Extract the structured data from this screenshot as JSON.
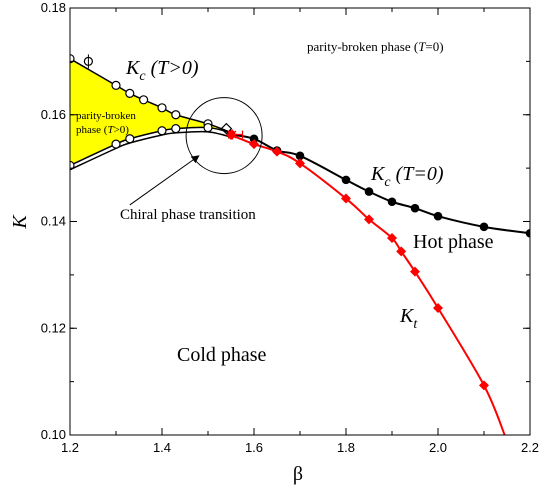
{
  "chart_data": {
    "type": "scatter",
    "xlabel": "β",
    "ylabel": "K",
    "xlim": [
      1.2,
      2.2
    ],
    "ylim": [
      0.1,
      0.18
    ],
    "x_ticks": [
      "1.2",
      "1.4",
      "1.6",
      "1.8",
      "2.0",
      "2.2"
    ],
    "y_ticks": [
      "0.10",
      "0.12",
      "0.14",
      "0.16",
      "0.18"
    ],
    "grid": false,
    "region_fill_color": "#ffff00",
    "colors": {
      "kc_t0": "#000000",
      "kt": "#ff0000",
      "kc_tpos": "#000000"
    },
    "series": [
      {
        "name": "K_c (T>0)",
        "marker": "open-circle",
        "upper_branch": [
          [
            1.2,
            0.1705
          ],
          [
            1.3,
            0.1655
          ],
          [
            1.33,
            0.164
          ],
          [
            1.36,
            0.1628
          ],
          [
            1.4,
            0.1613
          ],
          [
            1.43,
            0.16
          ],
          [
            1.5,
            0.1583
          ]
        ],
        "lower_branch": [
          [
            1.2,
            0.1505
          ],
          [
            1.3,
            0.1545
          ],
          [
            1.33,
            0.1555
          ],
          [
            1.4,
            0.157
          ],
          [
            1.43,
            0.1574
          ],
          [
            1.5,
            0.1576
          ]
        ],
        "extra_point": [
          1.24,
          0.17
        ]
      },
      {
        "name": "K_c (T=0)",
        "marker": "filled-circle",
        "points": [
          [
            1.55,
            0.1563
          ],
          [
            1.6,
            0.1555
          ],
          [
            1.65,
            0.1533
          ],
          [
            1.7,
            0.1523
          ],
          [
            1.8,
            0.1478
          ],
          [
            1.85,
            0.1456
          ],
          [
            1.9,
            0.1437
          ],
          [
            1.95,
            0.1425
          ],
          [
            2.0,
            0.141
          ],
          [
            2.1,
            0.139
          ],
          [
            2.2,
            0.1378
          ]
        ]
      },
      {
        "name": "K_t",
        "marker": "diamond",
        "points": [
          [
            1.55,
            0.1562
          ],
          [
            1.6,
            0.1545
          ],
          [
            1.65,
            0.1531
          ],
          [
            1.7,
            0.1509
          ],
          [
            1.8,
            0.1443
          ],
          [
            1.85,
            0.1404
          ],
          [
            1.9,
            0.1369
          ],
          [
            1.92,
            0.1344
          ],
          [
            1.95,
            0.1306
          ],
          [
            2.0,
            0.1238
          ],
          [
            2.1,
            0.1093
          ]
        ]
      }
    ],
    "annotations": {
      "kc_tpos": {
        "main": "K",
        "sub": "c",
        "rest": " (T>0)"
      },
      "kc_t0": {
        "main": "K",
        "sub": "c",
        "rest": " (T=0)"
      },
      "kt": {
        "main": "K",
        "sub": "t"
      },
      "parity_top": {
        "pre": "parity-broken phase (",
        "it": "T",
        "post": "=0)"
      },
      "parity_region_line1": "parity-broken",
      "parity_region_line2": {
        "pre": "phase (",
        "it": "T",
        "post": ">0)"
      },
      "chiral": "Chiral phase transition",
      "hot": "Hot phase",
      "cold": "Cold phase"
    }
  }
}
